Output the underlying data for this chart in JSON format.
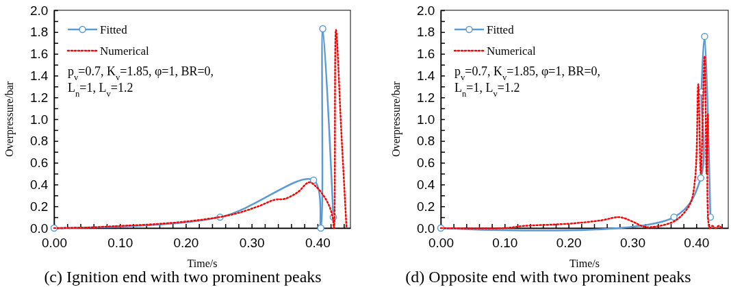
{
  "chart_data": [
    {
      "type": "line",
      "title": "(c) Ignition end with two prominent peaks",
      "xlabel": "Time/s",
      "ylabel": "Overpressure/bar",
      "annotations": [
        "p$_{v}$=0.7, K$_{v}$=1.85, φ=1, BR=0,",
        "L$_{n}$=1, L$_{v}$=1.2"
      ],
      "legend": "top left",
      "grid": false,
      "xlim": [
        0,
        0.45
      ],
      "ylim": [
        0,
        2.0
      ],
      "xticks": [
        {
          "value": 0,
          "label": "0.00"
        },
        {
          "value": 0.02,
          "label": null
        },
        {
          "value": 0.04,
          "label": null
        },
        {
          "value": 0.06,
          "label": null
        },
        {
          "value": 0.08,
          "label": null
        },
        {
          "value": 0.1,
          "label": "0.10"
        },
        {
          "value": 0.12,
          "label": null
        },
        {
          "value": 0.14,
          "label": null
        },
        {
          "value": 0.16,
          "label": null
        },
        {
          "value": 0.18,
          "label": null
        },
        {
          "value": 0.2,
          "label": "0.20"
        },
        {
          "value": 0.22,
          "label": null
        },
        {
          "value": 0.24,
          "label": null
        },
        {
          "value": 0.26,
          "label": null
        },
        {
          "value": 0.28,
          "label": null
        },
        {
          "value": 0.3,
          "label": "0.30"
        },
        {
          "value": 0.32,
          "label": null
        },
        {
          "value": 0.34,
          "label": null
        },
        {
          "value": 0.36,
          "label": null
        },
        {
          "value": 0.38,
          "label": null
        },
        {
          "value": 0.4,
          "label": "0.40"
        },
        {
          "value": 0.42,
          "label": null
        },
        {
          "value": 0.44,
          "label": null
        }
      ],
      "yticks": [
        {
          "value": 0,
          "label": "0.0"
        },
        {
          "value": 0.1,
          "label": null
        },
        {
          "value": 0.2,
          "label": "0.2"
        },
        {
          "value": 0.3,
          "label": null
        },
        {
          "value": 0.4,
          "label": "0.4"
        },
        {
          "value": 0.5,
          "label": null
        },
        {
          "value": 0.6,
          "label": "0.6"
        },
        {
          "value": 0.7,
          "label": null
        },
        {
          "value": 0.8,
          "label": "0.8"
        },
        {
          "value": 0.9,
          "label": null
        },
        {
          "value": 1.0,
          "label": "1.0"
        },
        {
          "value": 1.1,
          "label": null
        },
        {
          "value": 1.2,
          "label": "1.2"
        },
        {
          "value": 1.3,
          "label": null
        },
        {
          "value": 1.4,
          "label": "1.4"
        },
        {
          "value": 1.5,
          "label": null
        },
        {
          "value": 1.6,
          "label": "1.6"
        },
        {
          "value": 1.7,
          "label": null
        },
        {
          "value": 1.8,
          "label": "1.8"
        },
        {
          "value": 1.9,
          "label": null
        },
        {
          "value": 2.0,
          "label": "2.0"
        }
      ],
      "series": [
        {
          "name": "Fitted",
          "color": "#5b9bd5",
          "marker": "circle",
          "line_style": "solid",
          "x": [
            0.0,
            0.252,
            0.394,
            0.405,
            0.408,
            0.424
          ],
          "values": [
            0.0,
            0.1,
            0.44,
            0.0,
            1.83,
            0.1
          ]
        },
        {
          "name": "Numerical",
          "color": "#ff0000",
          "marker": "none",
          "line_style": "dotted",
          "x": [
            0.0,
            0.05,
            0.1,
            0.15,
            0.2,
            0.25,
            0.28,
            0.31,
            0.335,
            0.351,
            0.37,
            0.387,
            0.398,
            0.41,
            0.418,
            0.423,
            0.425,
            0.428,
            0.436,
            0.444
          ],
          "values": [
            0.0,
            0.005,
            0.02,
            0.035,
            0.06,
            0.1,
            0.14,
            0.2,
            0.26,
            0.27,
            0.33,
            0.42,
            0.38,
            0.29,
            0.2,
            0.1,
            0.0,
            1.82,
            0.9,
            0.0
          ]
        }
      ]
    },
    {
      "type": "line",
      "title": "(d) Opposite end with two prominent peaks",
      "xlabel": "Time/s",
      "ylabel": "Overpressure/bar",
      "annotations": [
        "p$_{v}$=0.7, K$_{v}$=1.85, φ=1, BR=0,",
        "L$_{n}$=1, L$_{v}$=1.2"
      ],
      "legend": "top left",
      "grid": false,
      "xlim": [
        0,
        0.45
      ],
      "ylim": [
        0,
        2.0
      ],
      "xticks": [
        {
          "value": 0,
          "label": "0.00"
        },
        {
          "value": 0.02,
          "label": null
        },
        {
          "value": 0.04,
          "label": null
        },
        {
          "value": 0.06,
          "label": null
        },
        {
          "value": 0.08,
          "label": null
        },
        {
          "value": 0.1,
          "label": "0.10"
        },
        {
          "value": 0.12,
          "label": null
        },
        {
          "value": 0.14,
          "label": null
        },
        {
          "value": 0.16,
          "label": null
        },
        {
          "value": 0.18,
          "label": null
        },
        {
          "value": 0.2,
          "label": "0.20"
        },
        {
          "value": 0.22,
          "label": null
        },
        {
          "value": 0.24,
          "label": null
        },
        {
          "value": 0.26,
          "label": null
        },
        {
          "value": 0.28,
          "label": null
        },
        {
          "value": 0.3,
          "label": "0.30"
        },
        {
          "value": 0.32,
          "label": null
        },
        {
          "value": 0.34,
          "label": null
        },
        {
          "value": 0.36,
          "label": null
        },
        {
          "value": 0.38,
          "label": null
        },
        {
          "value": 0.4,
          "label": "0.40"
        },
        {
          "value": 0.42,
          "label": null
        },
        {
          "value": 0.44,
          "label": null
        }
      ],
      "yticks": [
        {
          "value": 0,
          "label": "0.0"
        },
        {
          "value": 0.1,
          "label": null
        },
        {
          "value": 0.2,
          "label": "0.2"
        },
        {
          "value": 0.3,
          "label": null
        },
        {
          "value": 0.4,
          "label": "0.4"
        },
        {
          "value": 0.5,
          "label": null
        },
        {
          "value": 0.6,
          "label": "0.6"
        },
        {
          "value": 0.7,
          "label": null
        },
        {
          "value": 0.8,
          "label": "0.8"
        },
        {
          "value": 0.9,
          "label": null
        },
        {
          "value": 1.0,
          "label": "1.0"
        },
        {
          "value": 1.1,
          "label": null
        },
        {
          "value": 1.2,
          "label": "1.2"
        },
        {
          "value": 1.3,
          "label": null
        },
        {
          "value": 1.4,
          "label": "1.4"
        },
        {
          "value": 1.5,
          "label": null
        },
        {
          "value": 1.6,
          "label": "1.6"
        },
        {
          "value": 1.7,
          "label": null
        },
        {
          "value": 1.8,
          "label": "1.8"
        },
        {
          "value": 1.9,
          "label": null
        },
        {
          "value": 2.0,
          "label": "2.0"
        }
      ],
      "series": [
        {
          "name": "Fitted",
          "color": "#5b9bd5",
          "marker": "circle",
          "line_style": "solid",
          "x": [
            0.0,
            0.365,
            0.407,
            0.408,
            0.413,
            0.422
          ],
          "values": [
            0.0,
            0.1,
            0.46,
            1.25,
            1.76,
            0.1
          ]
        },
        {
          "name": "Numerical",
          "color": "#ff0000",
          "marker": "none",
          "line_style": "dotted",
          "x": [
            0.0,
            0.1,
            0.13,
            0.2,
            0.25,
            0.28,
            0.3,
            0.32,
            0.35,
            0.37,
            0.39,
            0.398,
            0.403,
            0.407,
            0.413,
            0.416,
            0.418,
            0.421,
            0.425,
            0.43,
            0.435,
            0.44
          ],
          "values": [
            0.0,
            0.0,
            0.02,
            0.04,
            0.07,
            0.1,
            0.06,
            0.01,
            0.03,
            0.08,
            0.22,
            0.45,
            1.32,
            0.5,
            1.58,
            0.5,
            1.05,
            0.0,
            0.02,
            0.0,
            0.02,
            0.0
          ]
        }
      ]
    }
  ]
}
